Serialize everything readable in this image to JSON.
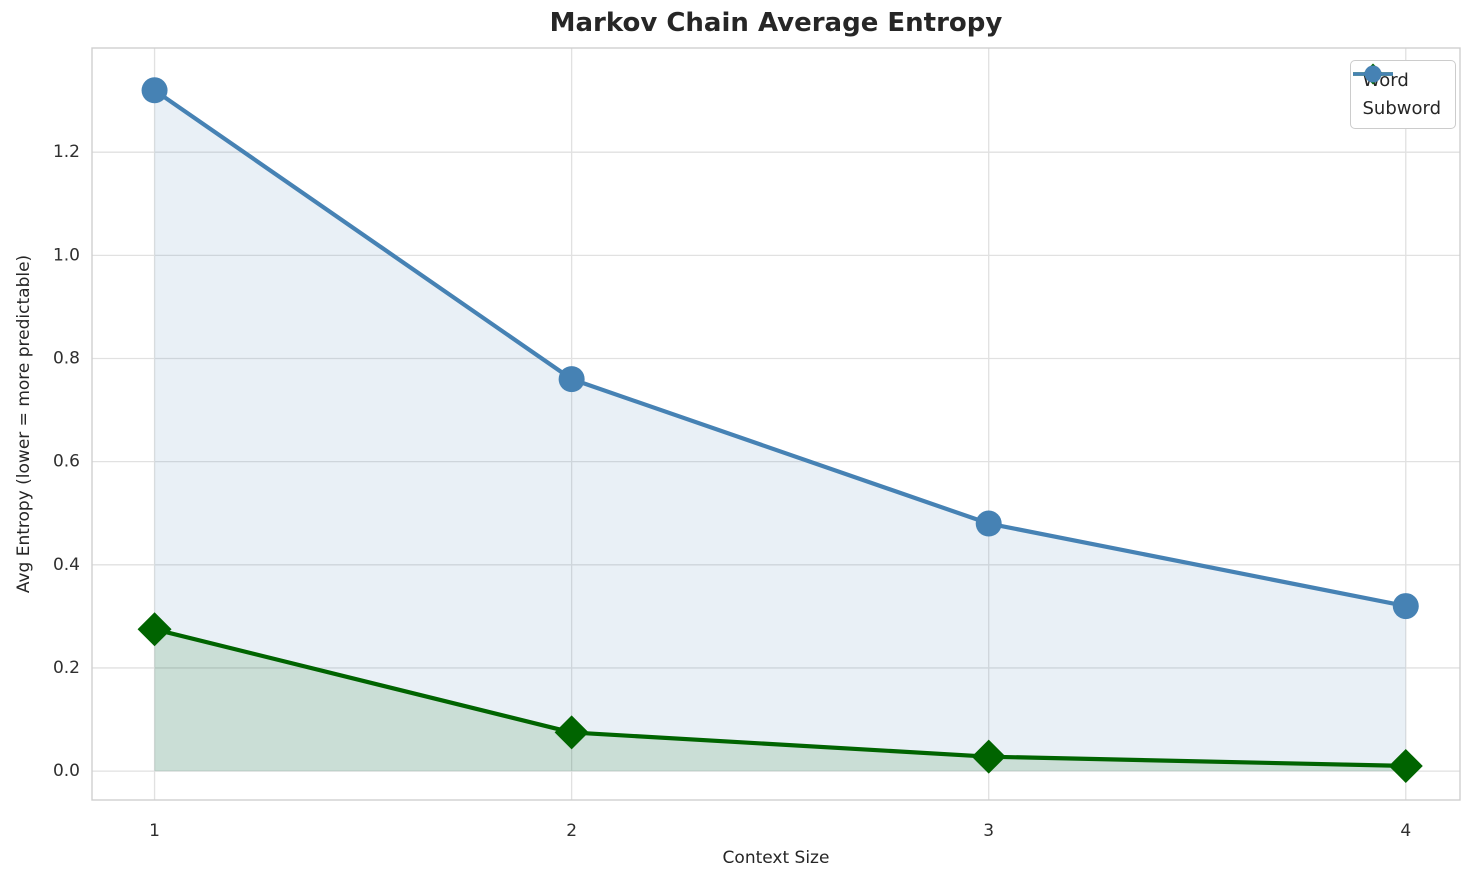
{
  "chart_data": {
    "type": "line",
    "title": "Markov Chain Average Entropy",
    "xlabel": "Context Size",
    "ylabel": "Avg Entropy (lower = more predictable)",
    "x": [
      1,
      2,
      3,
      4
    ],
    "series": [
      {
        "name": "Word",
        "values": [
          0.275,
          0.075,
          0.028,
          0.01
        ],
        "color": "#006400",
        "marker": "diamond",
        "fill_alpha": 0.13
      },
      {
        "name": "Subword",
        "values": [
          1.32,
          0.76,
          0.48,
          0.32
        ],
        "color": "#4682b4",
        "marker": "circle",
        "fill_alpha": 0.12
      }
    ],
    "xticks": [
      1,
      2,
      3,
      4
    ],
    "yticks": [
      0.0,
      0.2,
      0.4,
      0.6,
      0.8,
      1.0,
      1.2
    ],
    "xlim": [
      0.85,
      4.13
    ],
    "ylim": [
      -0.056,
      1.402
    ],
    "grid": true,
    "legend_position": "upper right",
    "fill_to_zero": true
  },
  "style": {
    "grid_color": "#e1e1e1",
    "spine_color": "#cfcfcf",
    "tick_color": "#2f2f2f",
    "background": "#ffffff"
  }
}
